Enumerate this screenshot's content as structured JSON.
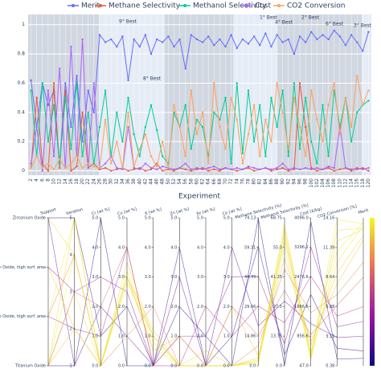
{
  "chart_data": [
    {
      "type": "line",
      "xlabel": "Experiment",
      "x": [
        2,
        4,
        6,
        8,
        10,
        12,
        14,
        16,
        18,
        20,
        22,
        24,
        26,
        28,
        30,
        32,
        34,
        36,
        38,
        40,
        42,
        44,
        46,
        48,
        50,
        52,
        54,
        56,
        58,
        60,
        62,
        64,
        66,
        68,
        70,
        72,
        74,
        76,
        78,
        80,
        82,
        84,
        86,
        88,
        90,
        92,
        94,
        96,
        98,
        100,
        102,
        104,
        106,
        108,
        110,
        112,
        114,
        116,
        118,
        120
      ],
      "xlim": [
        1,
        121
      ],
      "xticks": [
        2,
        4,
        6,
        8,
        10,
        12,
        14,
        16,
        18,
        20,
        22,
        24,
        26,
        28,
        30,
        32,
        34,
        36,
        38,
        40,
        42,
        44,
        46,
        48,
        50,
        52,
        54,
        56,
        58,
        60,
        62,
        64,
        66,
        68,
        70,
        72,
        74,
        76,
        78,
        80,
        82,
        84,
        86,
        88,
        90,
        92,
        94,
        96,
        98,
        100,
        102,
        104,
        106,
        108,
        110,
        112,
        114,
        116,
        118,
        120
      ],
      "ylim": [
        -0.03,
        1.07
      ],
      "yticks": [
        0,
        0.2,
        0.4,
        0.6,
        0.8,
        1
      ],
      "grid": true,
      "annotations": [
        "9° Best",
        "8° Best",
        "1° Best",
        "4° Best",
        "2° Best",
        "6° Best",
        "3° Best"
      ],
      "series": [
        {
          "name": "Merit",
          "color": "#636efa",
          "values": [
            0.62,
            0.3,
            0.6,
            0.45,
            0.55,
            0.05,
            0.6,
            0.3,
            0.65,
            0.2,
            0.55,
            0.4,
            0.93,
            0.88,
            0.9,
            0.85,
            0.92,
            0.62,
            0.9,
            0.85,
            0.93,
            0.8,
            0.9,
            0.88,
            0.92,
            0.85,
            0.9,
            0.7,
            0.93,
            0.9,
            0.88,
            0.92,
            0.86,
            0.9,
            0.85,
            0.93,
            0.84,
            0.9,
            0.87,
            0.92,
            0.86,
            0.94,
            0.85,
            0.93,
            0.88,
            0.9,
            0.8,
            0.92,
            0.88,
            0.95,
            0.9,
            0.93,
            0.9,
            0.96,
            0.92,
            0.86,
            0.93,
            0.88,
            0.82,
            0.95
          ]
        },
        {
          "name": "Methane Selectivity",
          "color": "#ef553b",
          "values": [
            0.02,
            0.5,
            0.05,
            0,
            0.6,
            0.02,
            0.55,
            0,
            0.03,
            0.4,
            0.02,
            0.05,
            0.01,
            0.02,
            0,
            0.01,
            0.02,
            0,
            0.01,
            0.02,
            0,
            0.01,
            0.05,
            0,
            0.01,
            0,
            0.02,
            0.01,
            0,
            0.01,
            0.02,
            0,
            0.01,
            0,
            0.02,
            0.01,
            0,
            0.01,
            0.02,
            0,
            0.01,
            0.02,
            0,
            0.01,
            0.02,
            0,
            0.01,
            0.6,
            0.3,
            0.02,
            0,
            0.01,
            0.02,
            0,
            0.01,
            0.02,
            0,
            0.01,
            0.02,
            0
          ]
        },
        {
          "name": "Methanol Selectivity",
          "color": "#00cc96",
          "values": [
            0.55,
            0.1,
            0.6,
            0.2,
            0.45,
            0.05,
            0.5,
            0.15,
            0.6,
            0.1,
            0.4,
            0.05,
            0.3,
            0.55,
            0.1,
            0.4,
            0.2,
            0.5,
            0.25,
            0.1,
            0.3,
            0.45,
            0.28,
            0.1,
            0.05,
            0.4,
            0.3,
            0.45,
            0.15,
            0.35,
            0.3,
            0.1,
            0.4,
            0.35,
            0.5,
            0.05,
            0.6,
            0.12,
            0.55,
            0.2,
            0.45,
            0.1,
            0.5,
            0.3,
            0.55,
            0.1,
            0.6,
            0.15,
            0.5,
            0.2,
            0.05,
            0.45,
            0.1,
            0.55,
            0.3,
            0.5,
            0.2,
            0.4,
            0.45,
            0.48
          ]
        },
        {
          "name": "Cost",
          "color": "#ab63fa",
          "values": [
            0.05,
            0.3,
            0,
            0.55,
            0.1,
            0.7,
            0.02,
            0.85,
            0.1,
            0.9,
            0.02,
            0.6,
            0.02,
            0.05,
            0.1,
            0.02,
            0.01,
            0.3,
            0.02,
            0.01,
            0.05,
            0.02,
            0.01,
            0.03,
            0.02,
            0.01,
            0.02,
            0.05,
            0.01,
            0.02,
            0.01,
            0.02,
            0.03,
            0.01,
            0.02,
            0.01,
            0.02,
            0.01,
            0.03,
            0.02,
            0.01,
            0.02,
            0.01,
            0.02,
            0.05,
            0.01,
            0.02,
            0.01,
            0.02,
            0.01,
            0.02,
            0.01,
            0.03,
            0.02,
            0.3,
            0.02,
            0.01,
            0.02,
            0.01,
            0.02
          ]
        },
        {
          "name": "CO2 Conversion",
          "color": "#ffa15a",
          "values": [
            0.02,
            0.1,
            0.02,
            0.05,
            0.01,
            0.08,
            0.02,
            0.05,
            0.1,
            0.02,
            0.05,
            0.03,
            0.02,
            0.35,
            0.05,
            0.2,
            0.02,
            0.4,
            0.03,
            0.15,
            0.25,
            0.1,
            0.03,
            0.2,
            0.02,
            0.45,
            0.3,
            0.1,
            0.55,
            0.25,
            0.4,
            0.05,
            0.6,
            0.3,
            0.15,
            0.5,
            0.35,
            0.05,
            0.25,
            0.45,
            0.1,
            0.35,
            0.2,
            0.6,
            0.4,
            0.15,
            0.5,
            0.3,
            0.1,
            0.55,
            0.35,
            0.2,
            0.45,
            0.6,
            0.25,
            0.5,
            0.3,
            0.65,
            0.45,
            0.55
          ]
        }
      ]
    },
    {
      "type": "parcoords",
      "colorscale": [
        "#0d0887",
        "#9c179e",
        "#ed7953",
        "#f0f921"
      ],
      "dimensions": [
        {
          "label": "Support",
          "ylim": [
            0,
            3
          ],
          "yticks": [
            {
              "value": 0,
              "label": "Titanium Oxide"
            },
            {
              "value": 1,
              "label": "Zirconium Oxide, high surf. area"
            },
            {
              "value": 2,
              "label": "Silicon Oxide, high surf. area"
            },
            {
              "value": 3,
              "label": "Zirconium Oxide"
            }
          ]
        },
        {
          "label": "Iteration",
          "ylim": [
            1,
            5
          ],
          "yticks": [
            1,
            2,
            3,
            4,
            5
          ]
        },
        {
          "label": "Cr [wt %]",
          "ylim": [
            0,
            5
          ],
          "yticks": [
            {
              "value": 0,
              "label": "0.0"
            },
            {
              "value": 1,
              "label": "1.0"
            },
            {
              "value": 2,
              "label": "2.0"
            },
            {
              "value": 3,
              "label": "3.0"
            },
            {
              "value": 4,
              "label": "4.0"
            },
            {
              "value": 5,
              "label": "5.0"
            }
          ]
        },
        {
          "label": "Cu [wt %]",
          "ylim": [
            0,
            5
          ],
          "yticks": [
            {
              "value": 0,
              "label": "0.0"
            },
            {
              "value": 1,
              "label": "1.0"
            },
            {
              "value": 2,
              "label": "2.0"
            },
            {
              "value": 3,
              "label": "3.0"
            },
            {
              "value": 4,
              "label": "4.0"
            },
            {
              "value": 5,
              "label": "5.0"
            }
          ]
        },
        {
          "label": "K [wt %]",
          "ylim": [
            0,
            5
          ],
          "yticks": [
            {
              "value": 0,
              "label": "0.0"
            },
            {
              "value": 1,
              "label": "1.0"
            },
            {
              "value": 2,
              "label": "2.0"
            },
            {
              "value": 3,
              "label": "3.0"
            },
            {
              "value": 4,
              "label": "4.0"
            },
            {
              "value": 5,
              "label": "5.0"
            }
          ]
        },
        {
          "label": "Zn [wt %]",
          "ylim": [
            0,
            5
          ],
          "yticks": [
            {
              "value": 0,
              "label": "0.0"
            },
            {
              "value": 1,
              "label": "1.0"
            },
            {
              "value": 2,
              "label": "2.0"
            },
            {
              "value": 3,
              "label": "3.0"
            },
            {
              "value": 4,
              "label": "4.0"
            },
            {
              "value": 5,
              "label": "5.0"
            }
          ]
        },
        {
          "label": "Fe [wt %]",
          "ylim": [
            0,
            5
          ],
          "yticks": [
            {
              "value": 0,
              "label": "0.0"
            },
            {
              "value": 1,
              "label": "1.0"
            },
            {
              "value": 2,
              "label": "2.0"
            },
            {
              "value": 3,
              "label": "3.0"
            },
            {
              "value": 4,
              "label": "4.0"
            },
            {
              "value": 5,
              "label": "5.0"
            }
          ]
        },
        {
          "label": "Ce [wt %]",
          "ylim": [
            0,
            5
          ],
          "yticks": [
            {
              "value": 0,
              "label": "0.0"
            },
            {
              "value": 1,
              "label": "1.0"
            },
            {
              "value": 2,
              "label": "2.0"
            },
            {
              "value": 3,
              "label": "3.0"
            },
            {
              "value": 4,
              "label": "4.0"
            },
            {
              "value": 5,
              "label": "5.0"
            }
          ]
        },
        {
          "label": "Methane Selectivity [%]",
          "ylim": [
            0,
            74.13
          ],
          "yticks": [
            {
              "value": 0,
              "label": "0.0"
            },
            14.86,
            29.66,
            44.49,
            59.31,
            74.13
          ]
        },
        {
          "label": "Methanol Selectivity [%]",
          "ylim": [
            0,
            68.75
          ],
          "yticks": [
            {
              "value": 0,
              "label": "0.0"
            },
            13.75,
            27.5,
            41.25,
            {
              "value": 55,
              "label": "55.0"
            },
            68.75
          ]
        },
        {
          "label": "Cost [$/kg]",
          "ylim": [
            47,
            4096
          ],
          "yticks": [
            {
              "value": 47,
              "label": "47.0"
            },
            856.6,
            1666.6,
            2476.6,
            3296.2,
            {
              "value": 4096,
              "label": "4096.0"
            }
          ]
        },
        {
          "label": "CO2 Conversion [%]",
          "ylim": [
            0.38,
            14.16
          ],
          "yticks": [
            0.38,
            3.13,
            5.88,
            8.64,
            11.39,
            14.16
          ]
        },
        {
          "label": "Merit",
          "ylim": [
            0,
            1
          ],
          "yticks": []
        }
      ],
      "lines": [
        [
          3,
          1,
          2,
          1,
          0,
          3,
          0,
          4,
          20,
          30,
          1200,
          3,
          0.2
        ],
        [
          0,
          2,
          0,
          3,
          0.5,
          1,
          0,
          2,
          5,
          50,
          700,
          8,
          0.85
        ],
        [
          1,
          2,
          1,
          4,
          0,
          0,
          2,
          1,
          30,
          20,
          2500,
          5,
          0.4
        ],
        [
          0,
          3,
          0,
          3,
          1,
          0,
          0,
          0,
          2,
          55,
          300,
          10,
          0.95
        ],
        [
          2,
          3,
          3,
          2.5,
          0,
          1,
          1,
          3,
          45,
          10,
          3300,
          4,
          0.3
        ],
        [
          0,
          4,
          0,
          3.2,
          0.8,
          0,
          0,
          0,
          1,
          60,
          200,
          11,
          0.97
        ],
        [
          3,
          5,
          1,
          2,
          0,
          4,
          0,
          1,
          60,
          5,
          2000,
          2,
          0.1
        ],
        [
          0,
          5,
          0,
          3.5,
          1,
          0,
          0.5,
          0,
          3,
          62,
          400,
          12,
          0.92
        ],
        [
          1,
          4,
          0,
          1,
          2,
          0,
          0,
          0,
          10,
          45,
          1500,
          7,
          0.7
        ],
        [
          0,
          1,
          5,
          0,
          0,
          2,
          1,
          0,
          74,
          0,
          4000,
          1,
          0.05
        ],
        [
          2,
          2,
          0,
          3,
          1.2,
          0,
          0,
          0,
          4,
          58,
          600,
          9,
          0.88
        ],
        [
          0,
          3,
          2,
          4,
          0,
          1,
          0,
          2,
          15,
          35,
          900,
          6,
          0.6
        ],
        [
          3,
          4,
          0,
          2.8,
          1,
          0,
          0,
          0,
          2,
          64,
          250,
          13,
          0.93
        ],
        [
          1,
          5,
          0,
          3,
          0.6,
          0,
          0,
          0,
          3,
          66,
          350,
          14,
          0.96
        ]
      ]
    }
  ]
}
